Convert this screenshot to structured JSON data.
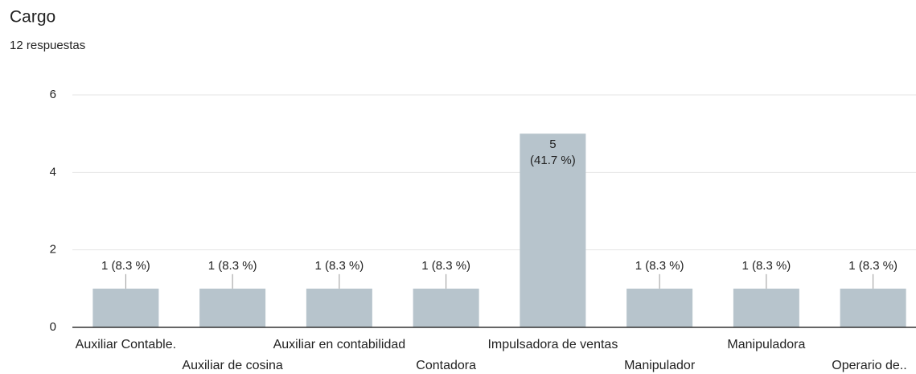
{
  "chart_data": {
    "type": "bar",
    "title": "Cargo",
    "subtitle": "12 respuestas",
    "categories": [
      "Auxiliar Contable.",
      "Auxiliar de cosina",
      "Auxiliar en contabilidad",
      "Contadora",
      "Impulsadora de ventas",
      "Manipulador",
      "Manipuladora",
      "Operario de.."
    ],
    "values": [
      1,
      1,
      1,
      1,
      5,
      1,
      1,
      1
    ],
    "value_labels": [
      "1 (8.3 %)",
      "1 (8.3 %)",
      "1 (8.3 %)",
      "1 (8.3 %)",
      "5\n(41.7 %)",
      "1 (8.3 %)",
      "1 (8.3 %)",
      "1 (8.3 %)"
    ],
    "color": "#b7c4cc",
    "ylim": [
      0,
      6
    ],
    "yticks": [
      0,
      2,
      4,
      6
    ],
    "grid": true
  }
}
